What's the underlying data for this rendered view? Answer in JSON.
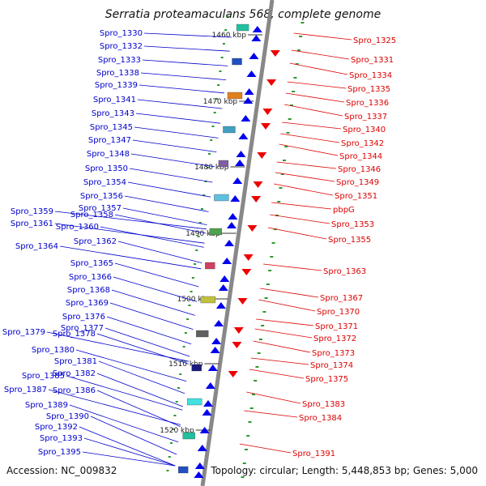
{
  "title": "Serratia proteamaculans 568, complete genome",
  "footer": {
    "accession": "Accession: NC_009832",
    "summary": "Topology: circular; Length: 5,448,853 bp; Genes: 5,000"
  },
  "colors": {
    "left_label": "#0000cc",
    "right_label": "#dd0000",
    "left_strand_arrow": "#0000ee",
    "right_strand_arrow": "#ee0000",
    "backbone": "#888888",
    "tick": "#2a9a2a"
  },
  "scale_labels": [
    "1460 kbp",
    "1470 kbp",
    "1480 kbp",
    "1490 kbp",
    "1500 kbp",
    "1510 kbp",
    "1520 kbp"
  ],
  "left_labels": [
    "Spro_1330",
    "Spro_1332",
    "Spro_1333",
    "Spro_1338",
    "Spro_1339",
    "Spro_1341",
    "Spro_1343",
    "Spro_1345",
    "Spro_1347",
    "Spro_1348",
    "Spro_1350",
    "Spro_1354",
    "Spro_1356",
    "Spro_1357",
    "Spro_1359",
    "Spro_1358",
    "Spro_1361",
    "Spro_1360",
    "Spro_1362",
    "Spro_1364",
    "Spro_1365",
    "Spro_1366",
    "Spro_1368",
    "Spro_1369",
    "Spro_1376",
    "Spro_1377",
    "Spro_1379",
    "Spro_1378",
    "Spro_1380",
    "Spro_1381",
    "Spro_1382",
    "Spro_1385",
    "Spro_1387",
    "Spro_1386",
    "Spro_1389",
    "Spro_1390",
    "Spro_1392",
    "Spro_1393",
    "Spro_1395"
  ],
  "right_labels": [
    "Spro_1325",
    "Spro_1331",
    "Spro_1334",
    "Spro_1335",
    "Spro_1336",
    "Spro_1337",
    "Spro_1340",
    "Spro_1342",
    "Spro_1344",
    "Spro_1346",
    "Spro_1349",
    "Spro_1351",
    "pbpG",
    "Spro_1353",
    "Spro_1355",
    "Spro_1363",
    "Spro_1367",
    "Spro_1370",
    "Spro_1371",
    "Spro_1372",
    "Spro_1373",
    "Spro_1374",
    "Spro_1375",
    "Spro_1383",
    "Spro_1384",
    "Spro_1391"
  ]
}
